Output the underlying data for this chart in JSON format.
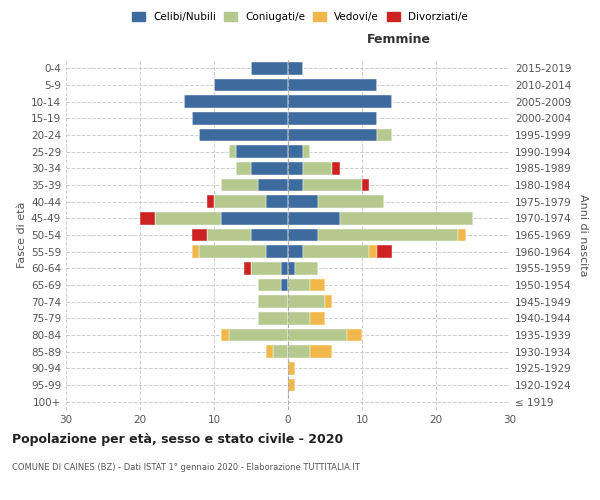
{
  "age_groups": [
    "100+",
    "95-99",
    "90-94",
    "85-89",
    "80-84",
    "75-79",
    "70-74",
    "65-69",
    "60-64",
    "55-59",
    "50-54",
    "45-49",
    "40-44",
    "35-39",
    "30-34",
    "25-29",
    "20-24",
    "15-19",
    "10-14",
    "5-9",
    "0-4"
  ],
  "birth_years": [
    "≤ 1919",
    "1920-1924",
    "1925-1929",
    "1930-1934",
    "1935-1939",
    "1940-1944",
    "1945-1949",
    "1950-1954",
    "1955-1959",
    "1960-1964",
    "1965-1969",
    "1970-1974",
    "1975-1979",
    "1980-1984",
    "1985-1989",
    "1990-1994",
    "1995-1999",
    "2000-2004",
    "2005-2009",
    "2010-2014",
    "2015-2019"
  ],
  "colors": {
    "celibi": "#3d6b9e",
    "coniugati": "#b5c98e",
    "vedovi": "#f0b84b",
    "divorziati": "#cc2222"
  },
  "males": {
    "celibi": [
      0,
      0,
      0,
      0,
      0,
      0,
      0,
      1,
      1,
      3,
      5,
      9,
      3,
      4,
      5,
      7,
      12,
      13,
      14,
      10,
      5
    ],
    "coniugati": [
      0,
      0,
      0,
      2,
      8,
      4,
      4,
      3,
      4,
      9,
      6,
      9,
      7,
      5,
      2,
      1,
      0,
      0,
      0,
      0,
      0
    ],
    "vedovi": [
      0,
      0,
      0,
      1,
      1,
      0,
      0,
      0,
      0,
      1,
      0,
      0,
      0,
      0,
      0,
      0,
      0,
      0,
      0,
      0,
      0
    ],
    "divorziati": [
      0,
      0,
      0,
      0,
      0,
      0,
      0,
      0,
      1,
      0,
      2,
      2,
      1,
      0,
      0,
      0,
      0,
      0,
      0,
      0,
      0
    ]
  },
  "females": {
    "celibi": [
      0,
      0,
      0,
      0,
      0,
      0,
      0,
      0,
      1,
      2,
      4,
      7,
      4,
      2,
      2,
      2,
      12,
      12,
      14,
      12,
      2
    ],
    "coniugati": [
      0,
      0,
      0,
      3,
      8,
      3,
      5,
      3,
      3,
      9,
      19,
      18,
      9,
      8,
      4,
      1,
      2,
      0,
      0,
      0,
      0
    ],
    "vedovi": [
      0,
      1,
      1,
      3,
      2,
      2,
      1,
      2,
      0,
      1,
      1,
      0,
      0,
      0,
      0,
      0,
      0,
      0,
      0,
      0,
      0
    ],
    "divorziati": [
      0,
      0,
      0,
      0,
      0,
      0,
      0,
      0,
      0,
      2,
      0,
      0,
      0,
      1,
      1,
      0,
      0,
      0,
      0,
      0,
      0
    ]
  },
  "xlim": 30,
  "title": "Popolazione per età, sesso e stato civile - 2020",
  "subtitle": "COMUNE DI CAINES (BZ) - Dati ISTAT 1° gennaio 2020 - Elaborazione TUTTITALIA.IT",
  "ylabel_left": "Fasce di età",
  "ylabel_right": "Anni di nascita",
  "xlabel_right": "Femmine",
  "legend_labels": [
    "Celibi/Nubili",
    "Coniugati/e",
    "Vedovi/e",
    "Divorziati/e"
  ]
}
